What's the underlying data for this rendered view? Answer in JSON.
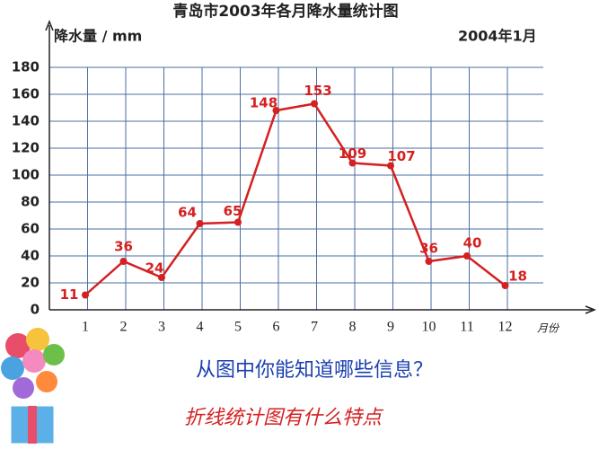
{
  "chart_data": {
    "type": "line",
    "title": "青岛市2003年各月降水量统计图",
    "y_label": "降水量 / mm",
    "note": "2004年1月",
    "x_label": "月份",
    "categories": [
      "1",
      "2",
      "3",
      "4",
      "5",
      "6",
      "7",
      "8",
      "9",
      "10",
      "11",
      "12"
    ],
    "values": [
      11,
      36,
      24,
      64,
      65,
      148,
      153,
      109,
      107,
      36,
      40,
      18
    ],
    "color": "#d42020",
    "ylim": [
      0,
      180
    ],
    "yticks": [
      0,
      20,
      40,
      60,
      80,
      100,
      120,
      140,
      160,
      180
    ],
    "grid": true
  },
  "slide": {
    "question": "从图中你能知道哪些信息？",
    "prompt": "折线统计图有什么特点"
  }
}
